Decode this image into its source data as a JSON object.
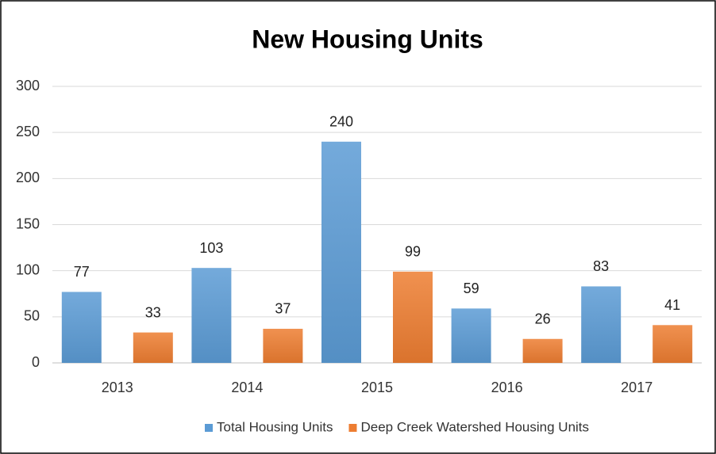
{
  "chart_data": {
    "type": "bar",
    "title": "New Housing Units",
    "categories": [
      "2013",
      "2014",
      "2015",
      "2016",
      "2017"
    ],
    "series": [
      {
        "name": "Total Housing Units",
        "color": "#5b9bd5",
        "values": [
          77,
          103,
          240,
          59,
          83
        ]
      },
      {
        "name": "Deep Creek Watershed Housing Units",
        "color": "#ed7d31",
        "values": [
          33,
          37,
          99,
          26,
          41
        ]
      }
    ],
    "ylim": [
      0,
      300
    ],
    "yticks": [
      0,
      50,
      100,
      150,
      200,
      250,
      300
    ],
    "grid": true,
    "legend": "bottom"
  }
}
